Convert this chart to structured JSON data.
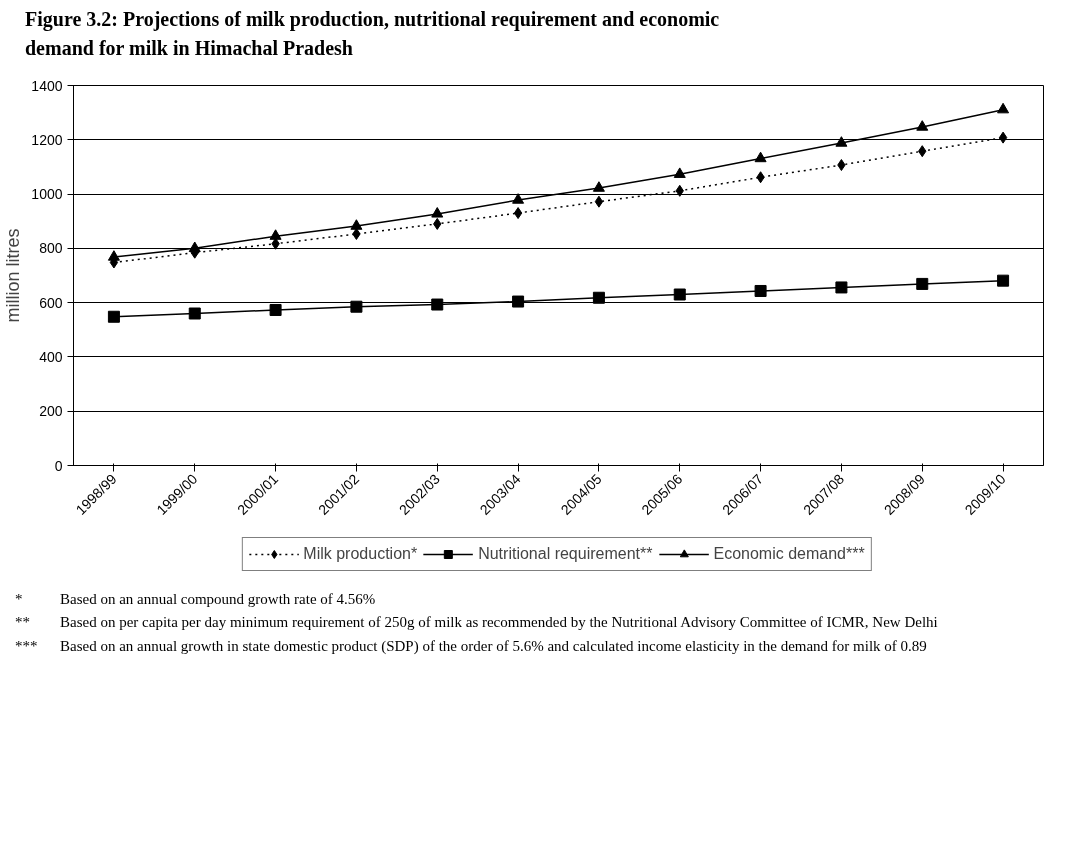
{
  "chart_data": {
    "type": "line",
    "title": "Figure 3.2:  Projections of milk production, nutritional requirement and economic demand for milk in Himachal Pradesh",
    "ylabel": "million litres",
    "categories": [
      "1998/99",
      "1999/00",
      "2000/01",
      "2001/02",
      "2002/03",
      "2003/04",
      "2004/05",
      "2005/06",
      "2006/07",
      "2007/08",
      "2008/09",
      "2009/10"
    ],
    "series": [
      {
        "name": "Milk production*",
        "color": "#000000",
        "marker": "diamond",
        "line_style": "dotted",
        "values": [
          748,
          784,
          817,
          853,
          890,
          930,
          972,
          1012,
          1062,
          1107,
          1158,
          1208
        ]
      },
      {
        "name": "Nutritional requirement**",
        "color": "#000000",
        "marker": "square",
        "line_style": "solid",
        "values": [
          548,
          560,
          573,
          585,
          593,
          604,
          618,
          630,
          643,
          656,
          669,
          681
        ]
      },
      {
        "name": "Economic demand***",
        "color": "#000000",
        "marker": "triangle",
        "line_style": "solid",
        "values": [
          768,
          800,
          845,
          882,
          927,
          978,
          1022,
          1073,
          1131,
          1188,
          1247,
          1311
        ]
      }
    ],
    "ylim": [
      0,
      1400
    ],
    "yticks": [
      0,
      200,
      400,
      600,
      800,
      1000,
      1200,
      1400
    ],
    "grid": "y",
    "legend": "bottom",
    "annotations": [
      "*\tBased on an annual compound growth rate of 4.56%",
      "**\tBased on per capita per day minimum requirement of 250g of milk as recommended by the Nutritional Advisory Committee of ICMR, New Delhi",
      "***\tBased on an annual growth in state domestic product (SDP) of the order of 5.6% and calculated income elasticity in the demand for milk of  0.89"
    ]
  }
}
